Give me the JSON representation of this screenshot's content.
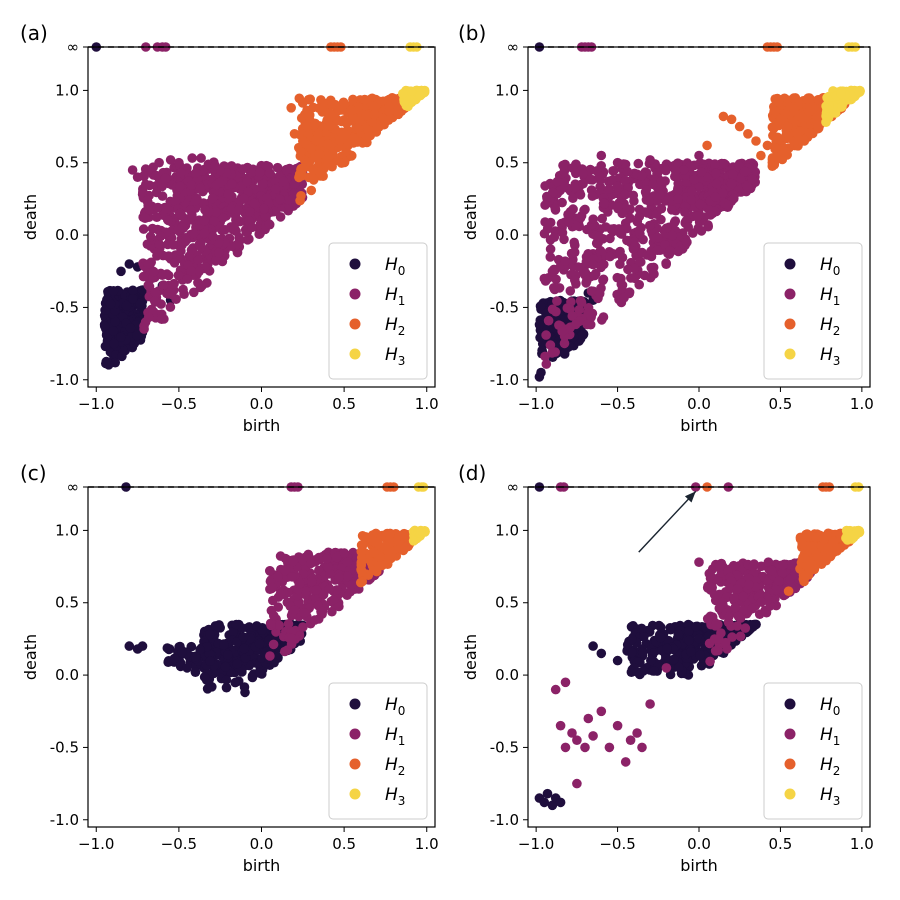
{
  "chart_data": [
    {
      "panel_label": "(a)",
      "type": "scatter",
      "xlabel": "birth",
      "ylabel": "death",
      "xlim": [
        -1.05,
        1.05
      ],
      "ylim": [
        -1.05,
        1.3
      ],
      "xticks": [
        "−1.0",
        "−0.5",
        "0.0",
        "0.5",
        "1.0"
      ],
      "yticks": [
        "-1.0",
        "-0.5",
        "0.0",
        "0.5",
        "1.0",
        "∞"
      ],
      "infinity_y": 1.3,
      "legend_position": "lower-right",
      "series": [
        {
          "name": "H0",
          "color": "#1f0e3d",
          "clusters": [
            {
              "x": [
                -0.95,
                -0.72
              ],
              "ylow": -0.9,
              "ytop": -0.38,
              "n": 260
            }
          ],
          "scatter": [
            [
              -0.85,
              -0.25
            ],
            [
              -0.8,
              -0.2
            ],
            [
              -0.75,
              -0.22
            ],
            [
              -0.6,
              -0.35
            ],
            [
              -0.55,
              -0.45
            ]
          ],
          "infinity_points": [
            -1.0
          ]
        },
        {
          "name": "H1",
          "color": "#8b2267",
          "clusters": [
            {
              "x": [
                -0.72,
                0.25
              ],
              "ylow": null,
              "ytop": 0.48,
              "n": 650
            },
            {
              "x": [
                -0.45,
                -0.25
              ],
              "ylow": null,
              "ytop": 0.55,
              "n": 60
            }
          ],
          "scatter": [
            [
              -0.78,
              0.45
            ],
            [
              -0.75,
              0.4
            ],
            [
              -0.7,
              0.35
            ],
            [
              -0.62,
              0.5
            ],
            [
              -0.55,
              0.52
            ],
            [
              -0.5,
              0.5
            ]
          ],
          "infinity_points": [
            -0.7,
            -0.63,
            -0.6,
            -0.58
          ]
        },
        {
          "name": "H2",
          "color": "#e5602c",
          "clusters": [
            {
              "x": [
                0.22,
                0.88
              ],
              "ylow": null,
              "ytop": 0.95,
              "n": 380
            }
          ],
          "scatter": [
            [
              0.18,
              0.88
            ],
            [
              0.2,
              0.7
            ],
            [
              0.25,
              0.65
            ],
            [
              0.28,
              0.62
            ],
            [
              0.3,
              0.6
            ]
          ],
          "infinity_points": [
            0.42,
            0.44,
            0.46,
            0.48
          ]
        },
        {
          "name": "H3",
          "color": "#f5d445",
          "clusters": [
            {
              "x": [
                0.85,
                0.99
              ],
              "ylow": null,
              "ytop": 1.0,
              "n": 90
            }
          ],
          "scatter": [],
          "infinity_points": [
            0.9,
            0.92,
            0.94
          ]
        }
      ]
    },
    {
      "panel_label": "(b)",
      "type": "scatter",
      "xlabel": "birth",
      "ylabel": "death",
      "xlim": [
        -1.05,
        1.05
      ],
      "ylim": [
        -1.05,
        1.3
      ],
      "xticks": [
        "−1.0",
        "−0.5",
        "0.0",
        "0.5",
        "1.0"
      ],
      "yticks": [
        "-1.0",
        "-0.5",
        "0.0",
        "0.5",
        "1.0",
        "∞"
      ],
      "infinity_y": 1.3,
      "legend_position": "lower-right",
      "series": [
        {
          "name": "H0",
          "color": "#1f0e3d",
          "clusters": [
            {
              "x": [
                -0.98,
                -0.7
              ],
              "ylow": -0.85,
              "ytop": -0.45,
              "n": 230
            }
          ],
          "scatter": [
            [
              -0.98,
              -0.98
            ],
            [
              -0.97,
              -0.95
            ],
            [
              -0.68,
              -0.4
            ],
            [
              -0.65,
              -0.45
            ]
          ],
          "infinity_points": [
            -0.98
          ]
        },
        {
          "name": "H1",
          "color": "#8b2267",
          "clusters": [
            {
              "x": [
                -0.95,
                0.35
              ],
              "ylow": null,
              "ytop": 0.5,
              "n": 720
            }
          ],
          "scatter": [
            [
              -0.95,
              -0.3
            ],
            [
              -0.9,
              -0.25
            ],
            [
              -0.6,
              0.55
            ],
            [
              -0.5,
              0.5
            ],
            [
              -0.3,
              0.52
            ],
            [
              0.0,
              0.55
            ]
          ],
          "infinity_points": [
            -0.72,
            -0.7,
            -0.68,
            -0.66
          ]
        },
        {
          "name": "H2",
          "color": "#e5602c",
          "clusters": [
            {
              "x": [
                0.45,
                0.9
              ],
              "ylow": null,
              "ytop": 0.95,
              "n": 300
            }
          ],
          "scatter": [
            [
              0.15,
              0.82
            ],
            [
              0.2,
              0.8
            ],
            [
              0.25,
              0.75
            ],
            [
              0.3,
              0.7
            ],
            [
              0.35,
              0.65
            ],
            [
              0.38,
              0.55
            ],
            [
              0.42,
              0.62
            ],
            [
              0.05,
              0.62
            ]
          ],
          "infinity_points": [
            0.42,
            0.44,
            0.46,
            0.48
          ]
        },
        {
          "name": "H3",
          "color": "#f5d445",
          "clusters": [
            {
              "x": [
                0.78,
                0.99
              ],
              "ylow": null,
              "ytop": 1.0,
              "n": 110
            }
          ],
          "scatter": [
            [
              0.78,
              0.78
            ]
          ],
          "infinity_points": [
            0.92,
            0.94,
            0.96
          ]
        }
      ]
    },
    {
      "panel_label": "(c)",
      "type": "scatter",
      "xlabel": "birth",
      "ylabel": "death",
      "xlim": [
        -1.05,
        1.05
      ],
      "ylim": [
        -1.05,
        1.3
      ],
      "xticks": [
        "−1.0",
        "−0.5",
        "0.0",
        "0.5",
        "1.0"
      ],
      "yticks": [
        "-1.0",
        "-0.5",
        "0.0",
        "0.5",
        "1.0",
        "∞"
      ],
      "infinity_y": 1.3,
      "legend_position": "lower-right",
      "series": [
        {
          "name": "H0",
          "color": "#1f0e3d",
          "clusters": [
            {
              "x": [
                -0.35,
                0.25
              ],
              "ylow": -0.1,
              "ytop": 0.35,
              "n": 280
            },
            {
              "x": [
                -0.6,
                -0.3
              ],
              "ylow": 0.05,
              "ytop": 0.2,
              "n": 40
            }
          ],
          "scatter": [
            [
              -0.8,
              0.2
            ],
            [
              -0.75,
              0.18
            ],
            [
              -0.72,
              0.2
            ],
            [
              -0.45,
              0.05
            ],
            [
              -0.4,
              0.02
            ],
            [
              -0.1,
              -0.12
            ]
          ],
          "infinity_points": [
            -0.82
          ]
        },
        {
          "name": "H1",
          "color": "#8b2267",
          "clusters": [
            {
              "x": [
                0.05,
                0.72
              ],
              "ylow": null,
              "ytop": 0.85,
              "n": 320
            }
          ],
          "scatter": [
            [
              0.05,
              0.72
            ],
            [
              0.1,
              0.68
            ]
          ],
          "infinity_points": [
            0.18,
            0.2,
            0.22
          ]
        },
        {
          "name": "H2",
          "color": "#e5602c",
          "clusters": [
            {
              "x": [
                0.6,
                0.95
              ],
              "ylow": null,
              "ytop": 0.98,
              "n": 200
            }
          ],
          "scatter": [],
          "infinity_points": [
            0.76,
            0.78,
            0.8
          ]
        },
        {
          "name": "H3",
          "color": "#f5d445",
          "clusters": [
            {
              "x": [
                0.92,
                0.99
              ],
              "ylow": null,
              "ytop": 1.0,
              "n": 50
            }
          ],
          "scatter": [],
          "infinity_points": [
            0.95,
            0.97,
            0.98
          ]
        }
      ]
    },
    {
      "panel_label": "(d)",
      "type": "scatter",
      "xlabel": "birth",
      "ylabel": "death",
      "xlim": [
        -1.05,
        1.05
      ],
      "ylim": [
        -1.05,
        1.3
      ],
      "xticks": [
        "−1.0",
        "−0.5",
        "0.0",
        "0.5",
        "1.0"
      ],
      "yticks": [
        "-1.0",
        "-0.5",
        "0.0",
        "0.5",
        "1.0",
        "∞"
      ],
      "infinity_y": 1.3,
      "legend_position": "lower-right",
      "annotation": {
        "type": "arrow",
        "from": [
          -0.37,
          0.85
        ],
        "to": [
          -0.02,
          1.27
        ]
      },
      "series": [
        {
          "name": "H0",
          "color": "#1f0e3d",
          "clusters": [
            {
              "x": [
                -0.45,
                0.35
              ],
              "ylow": 0.0,
              "ytop": 0.35,
              "n": 300
            }
          ],
          "scatter": [
            [
              -0.98,
              -0.85
            ],
            [
              -0.95,
              -0.88
            ],
            [
              -0.93,
              -0.82
            ],
            [
              -0.9,
              -0.9
            ],
            [
              -0.88,
              -0.85
            ],
            [
              -0.85,
              -0.88
            ],
            [
              -0.65,
              0.2
            ],
            [
              -0.6,
              0.15
            ],
            [
              -0.5,
              0.1
            ],
            [
              -0.4,
              0.05
            ]
          ],
          "infinity_points": [
            -0.98
          ]
        },
        {
          "name": "H1",
          "color": "#8b2267",
          "clusters": [
            {
              "x": [
                0.05,
                0.7
              ],
              "ylow": null,
              "ytop": 0.78,
              "n": 300
            }
          ],
          "scatter": [
            [
              -0.85,
              -0.35
            ],
            [
              -0.82,
              -0.5
            ],
            [
              -0.78,
              -0.4
            ],
            [
              -0.75,
              -0.45
            ],
            [
              -0.7,
              -0.5
            ],
            [
              -0.68,
              -0.3
            ],
            [
              -0.65,
              -0.42
            ],
            [
              -0.6,
              -0.25
            ],
            [
              -0.55,
              -0.5
            ],
            [
              -0.5,
              -0.35
            ],
            [
              -0.45,
              -0.6
            ],
            [
              -0.42,
              -0.45
            ],
            [
              -0.38,
              -0.4
            ],
            [
              -0.35,
              -0.5
            ],
            [
              -0.88,
              -0.1
            ],
            [
              -0.82,
              -0.05
            ],
            [
              -0.75,
              -0.75
            ],
            [
              -0.3,
              -0.2
            ],
            [
              -0.2,
              0.05
            ],
            [
              0.0,
              0.78
            ]
          ],
          "infinity_points": [
            -0.85,
            -0.83,
            -0.02,
            0.18
          ]
        },
        {
          "name": "H2",
          "color": "#e5602c",
          "clusters": [
            {
              "x": [
                0.62,
                0.95
              ],
              "ylow": null,
              "ytop": 0.98,
              "n": 220
            }
          ],
          "scatter": [
            [
              0.55,
              0.58
            ]
          ],
          "infinity_points": [
            0.05,
            0.76,
            0.78,
            0.8
          ]
        },
        {
          "name": "H3",
          "color": "#f5d445",
          "clusters": [
            {
              "x": [
                0.9,
                0.99
              ],
              "ylow": null,
              "ytop": 1.0,
              "n": 50
            }
          ],
          "scatter": [],
          "infinity_points": [
            0.96,
            0.98
          ]
        }
      ]
    }
  ]
}
